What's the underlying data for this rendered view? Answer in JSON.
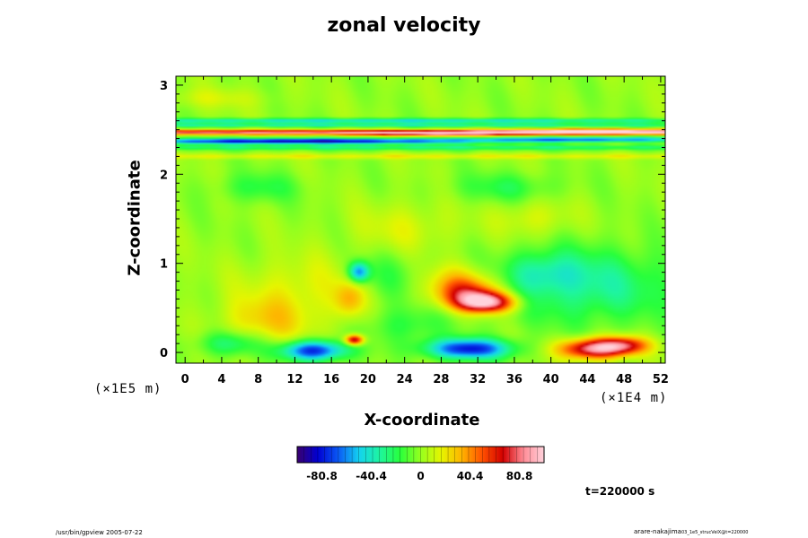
{
  "chart_data": {
    "type": "heatmap",
    "title": "zonal velocity",
    "xlabel": "X-coordinate",
    "ylabel": "Z-coordinate",
    "x_unit": "(×1E4 m)",
    "y_unit": "(×1E5 m)",
    "xlim": [
      -1,
      52.5
    ],
    "ylim": [
      -0.12,
      3.1
    ],
    "x_ticks": [
      "0",
      "4",
      "8",
      "12",
      "16",
      "20",
      "24",
      "28",
      "32",
      "36",
      "40",
      "44",
      "48",
      "52"
    ],
    "y_ticks": [
      "0",
      "1",
      "2",
      "3"
    ],
    "colorbar": {
      "ticks": [
        "-80.8",
        "-40.4",
        "0",
        "40.4",
        "80.8"
      ],
      "range": [
        -101,
        101
      ],
      "colors": [
        "#3a006e",
        "#0000d2",
        "#0a5af5",
        "#14d2f0",
        "#1ef5a0",
        "#28ff3c",
        "#96ff1e",
        "#e6f500",
        "#ffb400",
        "#ff5000",
        "#d20000",
        "#ff8c96",
        "#ffd2dc"
      ]
    },
    "background_value": 0,
    "features": [
      {
        "x": 22,
        "y": 2.6,
        "sx": 30,
        "sy": 0.018,
        "value": -45
      },
      {
        "x": 20,
        "y": 2.55,
        "sx": 40,
        "sy": 0.015,
        "value": -35
      },
      {
        "x": 18,
        "y": 2.47,
        "sx": 60,
        "sy": 0.018,
        "value": 85
      },
      {
        "x": 12,
        "y": 2.37,
        "sx": 14,
        "sy": 0.022,
        "value": -90
      },
      {
        "x": 44,
        "y": 2.39,
        "sx": 10,
        "sy": 0.02,
        "value": -60
      },
      {
        "x": 45,
        "y": 2.48,
        "sx": 8,
        "sy": 0.02,
        "value": 60
      },
      {
        "x": 28,
        "y": 2.45,
        "sx": 6,
        "sy": 0.02,
        "value": 50
      },
      {
        "x": 26,
        "y": 2.3,
        "sx": 40,
        "sy": 0.02,
        "value": -28
      },
      {
        "x": 26,
        "y": 2.2,
        "sx": 40,
        "sy": 0.02,
        "value": 18
      },
      {
        "x": 33,
        "y": 0.56,
        "sx": 2.2,
        "sy": 0.08,
        "value": 85
      },
      {
        "x": 31,
        "y": 0.65,
        "sx": 2.5,
        "sy": 0.12,
        "value": 50
      },
      {
        "x": 30,
        "y": 0.8,
        "sx": 3,
        "sy": 0.15,
        "value": 25
      },
      {
        "x": 14,
        "y": 0.02,
        "sx": 2.5,
        "sy": 0.08,
        "value": -80
      },
      {
        "x": 31,
        "y": 0.04,
        "sx": 3.2,
        "sy": 0.08,
        "value": -80
      },
      {
        "x": 44.5,
        "y": 0.04,
        "sx": 2.5,
        "sy": 0.08,
        "value": 85
      },
      {
        "x": 48,
        "y": 0.08,
        "sx": 2,
        "sy": 0.07,
        "value": 60
      },
      {
        "x": 18.5,
        "y": 0.14,
        "sx": 0.7,
        "sy": 0.04,
        "value": 80
      },
      {
        "x": 19,
        "y": 0.9,
        "sx": 0.8,
        "sy": 0.08,
        "value": -60
      },
      {
        "x": 18,
        "y": 0.6,
        "sx": 1.2,
        "sy": 0.15,
        "value": 30
      },
      {
        "x": 9,
        "y": 0.35,
        "sx": 3.5,
        "sy": 0.2,
        "value": 25
      },
      {
        "x": 13,
        "y": 0.75,
        "sx": 5,
        "sy": 0.25,
        "value": 15
      },
      {
        "x": 44,
        "y": 0.75,
        "sx": 7,
        "sy": 0.3,
        "value": -32
      },
      {
        "x": 39,
        "y": 0.9,
        "sx": 3,
        "sy": 0.15,
        "value": -20
      },
      {
        "x": 22,
        "y": 0.85,
        "sx": 3,
        "sy": 0.2,
        "value": -15
      },
      {
        "x": 5,
        "y": 0.1,
        "sx": 2.5,
        "sy": 0.1,
        "value": -30
      },
      {
        "x": 24,
        "y": 0.3,
        "sx": 3,
        "sy": 0.15,
        "value": -18
      },
      {
        "x": 8,
        "y": 1.85,
        "sx": 3,
        "sy": 0.12,
        "value": -18
      },
      {
        "x": 35,
        "y": 1.85,
        "sx": 4,
        "sy": 0.12,
        "value": -18
      },
      {
        "x": 24,
        "y": 1.4,
        "sx": 4,
        "sy": 0.2,
        "value": 14
      },
      {
        "x": 38,
        "y": 1.5,
        "sx": 3,
        "sy": 0.15,
        "value": 15
      },
      {
        "x": 3,
        "y": 2.85,
        "sx": 4,
        "sy": 0.08,
        "value": 12
      }
    ],
    "time_label": "t=220000 s",
    "grid": false,
    "legend": "colorbar-below"
  },
  "footer": {
    "left": "/usr/bin/gpview 2005-07-22",
    "right": "arare-nakajima",
    "right_small": "03_1e5_strucVelX@t=220000"
  }
}
